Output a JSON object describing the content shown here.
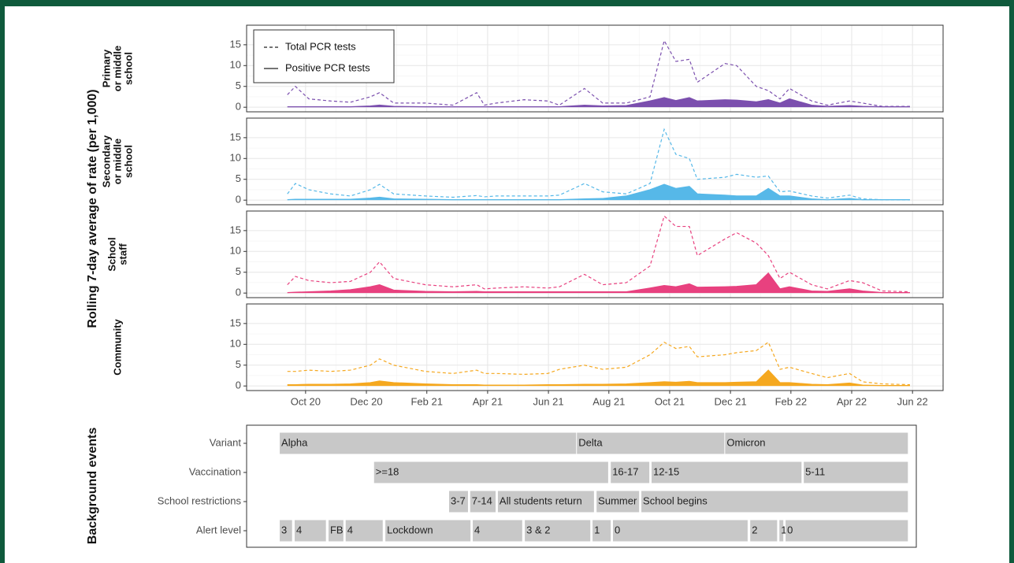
{
  "chart_data": [
    {
      "type": "line",
      "ylabel": "Rolling 7-day average of rate (per 1,000)",
      "legend_entries": [
        {
          "label": "Total PCR tests",
          "style": "dashed"
        },
        {
          "label": "Positive PCR tests",
          "style": "solid"
        }
      ],
      "legend_position": "top-left",
      "grid": true,
      "xlim": [
        2020.588,
        2022.501
      ],
      "xticks": [
        {
          "value": 2020.75,
          "label": "Oct 20"
        },
        {
          "value": 2020.917,
          "label": "Dec 20"
        },
        {
          "value": 2021.083,
          "label": "Feb 21"
        },
        {
          "value": 2021.25,
          "label": "Apr 21"
        },
        {
          "value": 2021.417,
          "label": "Jun 21"
        },
        {
          "value": 2021.583,
          "label": "Aug 21"
        },
        {
          "value": 2021.75,
          "label": "Oct 21"
        },
        {
          "value": 2021.917,
          "label": "Dec 21"
        },
        {
          "value": 2022.083,
          "label": "Feb 22"
        },
        {
          "value": 2022.25,
          "label": "Apr 22"
        },
        {
          "value": 2022.417,
          "label": "Jun 22"
        }
      ],
      "ylim": [
        -1.1,
        19.7
      ],
      "yticks": [
        0,
        5,
        10,
        15
      ],
      "x": [
        2020.7,
        2020.722,
        2020.759,
        2020.819,
        2020.873,
        2020.928,
        2020.953,
        2020.992,
        2021.079,
        2021.155,
        2021.22,
        2021.241,
        2021.274,
        2021.35,
        2021.415,
        2021.447,
        2021.516,
        2021.566,
        2021.631,
        2021.696,
        2021.735,
        2021.767,
        2021.804,
        2021.826,
        2021.902,
        2021.934,
        2021.988,
        2022.021,
        2022.053,
        2022.079,
        2022.14,
        2022.183,
        2022.244,
        2022.28,
        2022.334,
        2022.41
      ],
      "panels": [
        {
          "label": [
            "Primary",
            "or middle",
            "school"
          ],
          "color": "#7b4fae",
          "total": [
            3,
            5,
            2,
            1.5,
            1.2,
            2.5,
            3.5,
            1,
            1,
            0.5,
            3.5,
            0.5,
            1,
            1.8,
            1.5,
            0.5,
            4.5,
            1,
            1,
            2.5,
            16,
            11,
            11.5,
            6,
            10.5,
            10,
            5,
            4,
            2,
            4.5,
            1.5,
            0.5,
            1.5,
            1,
            0.2,
            0.2
          ],
          "positive": [
            0.1,
            0.1,
            0.1,
            0.1,
            0.1,
            0.3,
            0.5,
            0.2,
            0.1,
            0.1,
            0.1,
            0.1,
            0.1,
            0.1,
            0.1,
            0.1,
            0.5,
            0.3,
            0.4,
            1.5,
            2.3,
            1.6,
            2.3,
            1.5,
            1.8,
            1.7,
            1.3,
            1.8,
            1,
            2,
            0.5,
            0.2,
            0.4,
            0.2,
            0.1,
            0.1
          ]
        },
        {
          "label": [
            "Secondary",
            "or middle",
            "school"
          ],
          "color": "#56b8e8",
          "total": [
            1.5,
            4,
            2.5,
            1.5,
            1,
            2.5,
            3.8,
            1.5,
            1,
            0.7,
            1.1,
            0.8,
            1,
            1,
            1,
            1.2,
            4,
            2,
            1.5,
            4,
            17,
            11,
            10,
            5,
            5.5,
            6.2,
            5.5,
            5.8,
            2,
            2.2,
            1,
            0.5,
            1.2,
            0.3,
            0.1,
            0.1
          ],
          "positive": [
            0.1,
            0.2,
            0.2,
            0.2,
            0.2,
            0.5,
            0.7,
            0.3,
            0.2,
            0.1,
            0.1,
            0.1,
            0.1,
            0.1,
            0.1,
            0.1,
            0.3,
            0.4,
            1,
            2.5,
            3.8,
            2.8,
            3.3,
            1.5,
            1.2,
            1,
            1,
            2.8,
            1,
            1,
            0.3,
            0.1,
            0.4,
            0.1,
            0.1,
            0.1
          ]
        },
        {
          "label": [
            "School",
            "staff"
          ],
          "color": "#e8417f",
          "total": [
            2,
            4,
            3,
            2.5,
            2.8,
            5,
            7.5,
            3.5,
            2,
            1.5,
            2,
            1,
            1.2,
            1.5,
            1.2,
            1.5,
            4.5,
            2,
            2.5,
            6.5,
            18.5,
            16,
            16,
            9,
            13,
            14.5,
            12,
            9,
            3.5,
            5,
            2,
            1,
            3,
            2.5,
            0.5,
            0.3
          ],
          "positive": [
            0.1,
            0.2,
            0.3,
            0.5,
            0.8,
            1.5,
            2,
            0.7,
            0.4,
            0.3,
            0.4,
            0.3,
            0.3,
            0.3,
            0.3,
            0.3,
            0.3,
            0.3,
            0.3,
            1.2,
            1.8,
            1.5,
            2.2,
            1.4,
            1.5,
            1.6,
            2,
            4.8,
            1,
            1.5,
            0.5,
            0.4,
            1,
            0.5,
            0.1,
            0.1
          ]
        },
        {
          "label": [
            "Community"
          ],
          "color": "#f5a81f",
          "total": [
            3.5,
            3.5,
            3.8,
            3.5,
            3.8,
            5,
            6.5,
            5,
            3.5,
            3,
            3.8,
            3,
            3,
            2.8,
            3,
            4,
            5,
            4,
            4.5,
            7.5,
            10.5,
            9,
            9.5,
            7,
            7.5,
            8,
            8.5,
            10.5,
            4,
            4.5,
            3,
            2,
            3,
            1,
            0.5,
            0.3
          ],
          "positive": [
            0.3,
            0.3,
            0.4,
            0.4,
            0.5,
            0.8,
            1.2,
            0.8,
            0.5,
            0.3,
            0.3,
            0.2,
            0.2,
            0.2,
            0.3,
            0.3,
            0.4,
            0.4,
            0.5,
            0.8,
            1,
            0.9,
            1.1,
            0.8,
            0.8,
            0.9,
            1,
            3.8,
            0.8,
            0.8,
            0.4,
            0.3,
            0.7,
            0.2,
            0.1,
            0.1
          ]
        }
      ]
    },
    {
      "type": "gantt",
      "ylabel": "Background events",
      "bar_color": "#c8c8c8",
      "xlim": [
        2020.588,
        2022.427
      ],
      "rows": [
        {
          "name": "Variant",
          "bars": [
            {
              "label": "Alpha",
              "start": 2020.679,
              "end": 2021.495
            },
            {
              "label": "Delta",
              "start": 2021.495,
              "end": 2021.902
            },
            {
              "label": "Omicron",
              "start": 2021.902,
              "end": 2022.406
            }
          ]
        },
        {
          "name": "Vaccination",
          "bars": [
            {
              "label": ">=18",
              "start": 2020.938,
              "end": 2021.583
            },
            {
              "label": "16-17",
              "start": 2021.588,
              "end": 2021.696
            },
            {
              "label": "12-15",
              "start": 2021.7,
              "end": 2022.114
            },
            {
              "label": "5-11",
              "start": 2022.118,
              "end": 2022.406
            }
          ]
        },
        {
          "name": "School restrictions",
          "bars": [
            {
              "label": "3-7",
              "start": 2021.144,
              "end": 2021.198
            },
            {
              "label": "7-14",
              "start": 2021.202,
              "end": 2021.274
            },
            {
              "label": "All students return",
              "start": 2021.278,
              "end": 2021.544
            },
            {
              "label": "Summer",
              "start": 2021.549,
              "end": 2021.668
            },
            {
              "label": "School begins",
              "start": 2021.672,
              "end": 2022.406
            }
          ]
        },
        {
          "name": "Alert level",
          "bars": [
            {
              "label": "3",
              "start": 2020.679,
              "end": 2020.715
            },
            {
              "label": "4",
              "start": 2020.72,
              "end": 2020.808
            },
            {
              "label": "FB",
              "start": 2020.813,
              "end": 2020.856
            },
            {
              "label": "4",
              "start": 2020.86,
              "end": 2020.964
            },
            {
              "label": "Lockdown",
              "start": 2020.969,
              "end": 2021.205
            },
            {
              "label": "4",
              "start": 2021.209,
              "end": 2021.347
            },
            {
              "label": "3 & 2",
              "start": 2021.352,
              "end": 2021.534
            },
            {
              "label": "1",
              "start": 2021.538,
              "end": 2021.59
            },
            {
              "label": "0",
              "start": 2021.594,
              "end": 2021.966
            },
            {
              "label": "2",
              "start": 2021.971,
              "end": 2022.047
            },
            {
              "label": "1",
              "start": 2022.051,
              "end": 2022.064
            },
            {
              "label": "0",
              "start": 2022.068,
              "end": 2022.406
            }
          ]
        }
      ]
    }
  ]
}
